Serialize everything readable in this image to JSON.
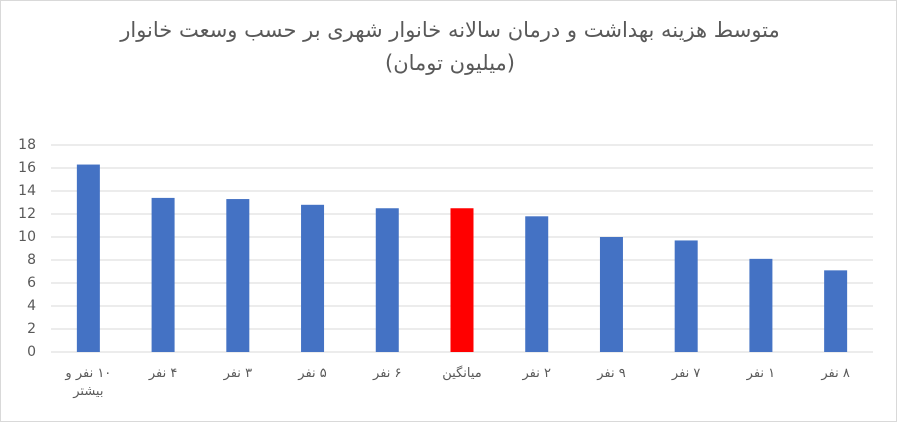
{
  "chart_data": {
    "type": "bar",
    "title": "متوسط هزینه بهداشت و درمان سالانه خانوار شهری بر حسب وسعت خانوار (میلیون تومان)",
    "categories": [
      "۱۰ نفر و بیشتر",
      "۴ نفر",
      "۳ نفر",
      "۵ نفر",
      "۶ نفر",
      "میانگین",
      "۲ نفر",
      "۹ نفر",
      "۷ نفر",
      "۱ نفر",
      "۸ نفر"
    ],
    "values": [
      16.3,
      13.4,
      13.3,
      12.8,
      12.5,
      12.5,
      11.8,
      10.0,
      9.7,
      8.1,
      7.1
    ],
    "colors": [
      "#4472c4",
      "#4472c4",
      "#4472c4",
      "#4472c4",
      "#4472c4",
      "#ff0000",
      "#4472c4",
      "#4472c4",
      "#4472c4",
      "#4472c4",
      "#4472c4"
    ],
    "ylim": [
      0,
      18
    ],
    "yticks": [
      0,
      2,
      4,
      6,
      8,
      10,
      12,
      14,
      16,
      18
    ],
    "grid": true
  }
}
